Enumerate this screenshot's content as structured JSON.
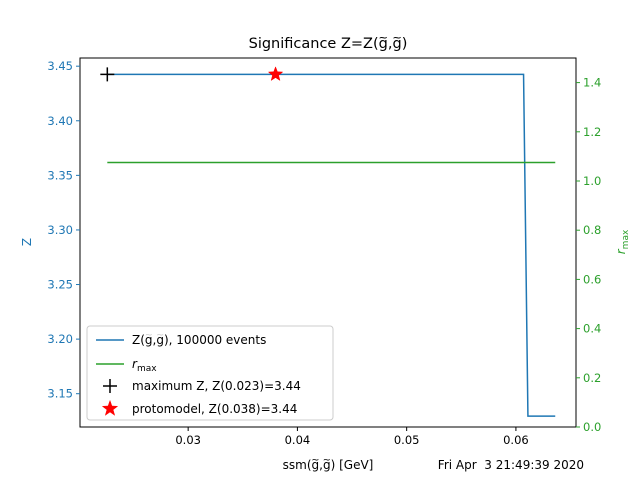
{
  "chart_data": {
    "type": "line",
    "title_prefix": "Significance Z=Z(",
    "title_g": "g",
    "title_mid": ",",
    "title_suffix": ")",
    "tilde": "~",
    "xlabel_prefix": "ssm(",
    "xlabel_suffix": ") [GeV]",
    "timestamp": "Fri Apr  3 21:49:39 2020",
    "ylabel_left": "Z",
    "ylabel_right_base": "r",
    "ylabel_right_sub": "max",
    "xlim": [
      0.0201,
      0.0655
    ],
    "ylim_left": [
      3.1195,
      3.4575
    ],
    "ylim_right": [
      0.0,
      1.5
    ],
    "xticks": [
      0.03,
      0.04,
      0.05,
      0.06
    ],
    "xtick_labels": [
      "0.03",
      "0.04",
      "0.05",
      "0.06"
    ],
    "yticks_left": [
      3.15,
      3.2,
      3.25,
      3.3,
      3.35,
      3.4,
      3.45
    ],
    "ytick_labels_left": [
      "3.15",
      "3.20",
      "3.25",
      "3.30",
      "3.35",
      "3.40",
      "3.45"
    ],
    "yticks_right": [
      0.0,
      0.2,
      0.4,
      0.6,
      0.8,
      1.0,
      1.2,
      1.4
    ],
    "ytick_labels_right": [
      "0.0",
      "0.2",
      "0.4",
      "0.6",
      "0.8",
      "1.0",
      "1.2",
      "1.4"
    ],
    "series": [
      {
        "name_prefix": "Z(",
        "name_suffix": "), 100000 events",
        "color": "#1f77b4",
        "axis": "left",
        "style": "step",
        "x": [
          0.0226,
          0.0607,
          0.0611,
          0.0636
        ],
        "y": [
          3.4425,
          3.4425,
          3.1295,
          3.1295
        ]
      },
      {
        "name_base": "r",
        "name_sub": "max",
        "color": "#2ca02c",
        "axis": "right",
        "style": "line",
        "x": [
          0.0226,
          0.0636
        ],
        "y": [
          1.075,
          1.075
        ]
      }
    ],
    "markers": [
      {
        "label": "maximum Z, Z(0.023)=3.44",
        "marker": "plus",
        "color": "#000000",
        "x": 0.0226,
        "y": 3.4425
      },
      {
        "label": "protomodel, Z(0.038)=3.44",
        "marker": "star",
        "color": "#ff0000",
        "x": 0.038,
        "y": 3.4425
      }
    ],
    "legend_position": "lower-left",
    "grid": false
  }
}
